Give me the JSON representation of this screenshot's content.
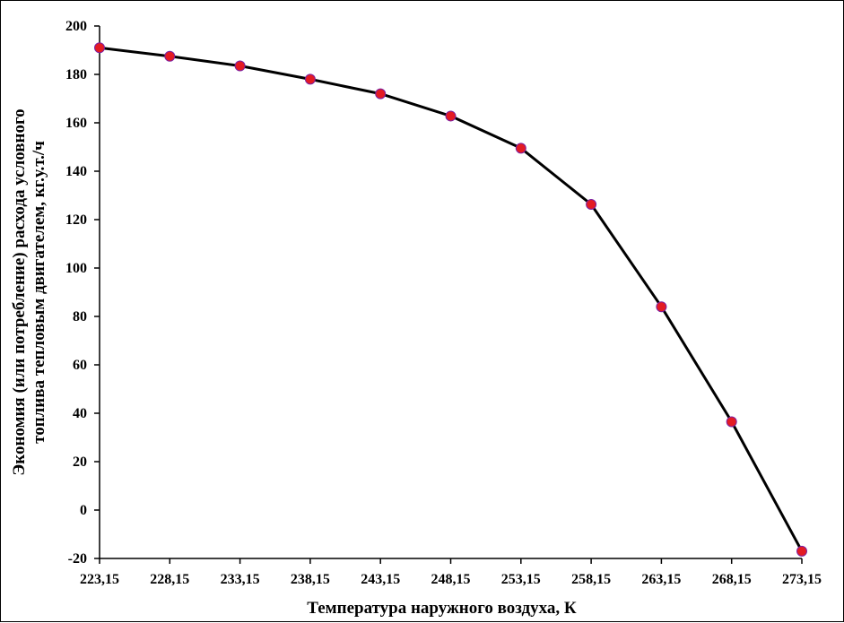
{
  "chart_data": {
    "type": "line",
    "xlabel": "Температура наружного воздуха, К",
    "ylabel_lines": [
      "Экономия (или потребление) расхода условного",
      "топлива тепловым двигателем, кг.у.т./ч"
    ],
    "x_tick_labels": [
      "223,15",
      "228,15",
      "233,15",
      "238,15",
      "243,15",
      "248,15",
      "253,15",
      "258,15",
      "263,15",
      "268,15",
      "273,15"
    ],
    "x": [
      223.15,
      228.15,
      233.15,
      238.15,
      243.15,
      248.15,
      253.15,
      258.15,
      263.15,
      268.15,
      273.15
    ],
    "y": [
      191,
      187.5,
      183.5,
      178,
      172,
      162.8,
      149.5,
      126.3,
      84,
      36.5,
      -17
    ],
    "xlim": [
      223.15,
      273.15
    ],
    "ylim": [
      -20,
      200
    ],
    "y_ticks": [
      -20,
      0,
      20,
      40,
      60,
      80,
      100,
      120,
      140,
      160,
      180,
      200
    ],
    "line_color": "#000000",
    "marker_color": "#e31b23",
    "marker_edge_color": "#7b1fa2",
    "grid": false,
    "legend": "none"
  }
}
